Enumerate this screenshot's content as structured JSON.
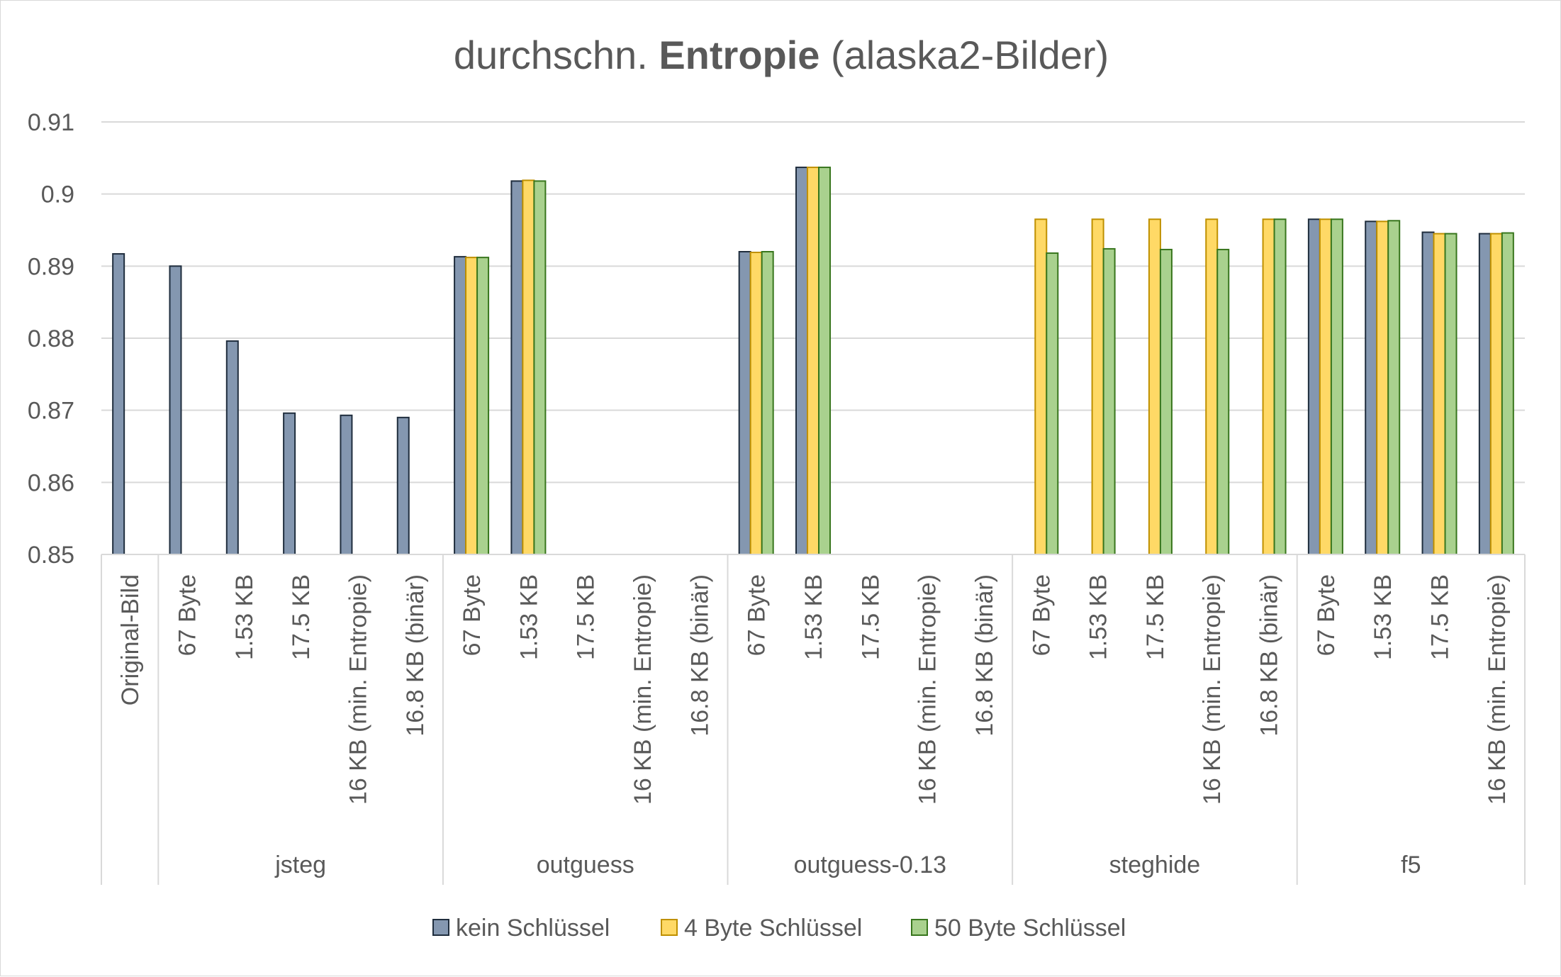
{
  "chart_data": {
    "type": "bar",
    "title": {
      "prefix": "durchschn. ",
      "bold": "Entropie",
      "suffix": " (alaska2-Bilder)"
    },
    "ylim": [
      0.85,
      0.91
    ],
    "yticks": [
      "0.85",
      "0.86",
      "0.87",
      "0.88",
      "0.89",
      "0.9",
      "0.91"
    ],
    "grid": true,
    "legend_position": "bottom",
    "groups": [
      {
        "label": "",
        "categories": [
          "Original-Bild"
        ]
      },
      {
        "label": "jsteg",
        "categories": [
          "67 Byte",
          "1.53 KB",
          "17.5 KB",
          "16 KB (min. Entropie)",
          "16.8 KB (binär)"
        ]
      },
      {
        "label": "outguess",
        "categories": [
          "67 Byte",
          "1.53 KB",
          "17.5 KB",
          "16 KB (min. Entropie)",
          "16.8 KB (binär)"
        ]
      },
      {
        "label": "outguess-0.13",
        "categories": [
          "67 Byte",
          "1.53 KB",
          "17.5 KB",
          "16 KB (min. Entropie)",
          "16.8 KB (binär)"
        ]
      },
      {
        "label": "steghide",
        "categories": [
          "67 Byte",
          "1.53 KB",
          "17.5 KB",
          "16 KB (min. Entropie)",
          "16.8 KB (binär)"
        ]
      },
      {
        "label": "f5",
        "categories": [
          "67 Byte",
          "1.53 KB",
          "17.5 KB",
          "16 KB (min. Entropie)"
        ]
      }
    ],
    "series": [
      {
        "name": "kein Schlüssel",
        "color": "#8497b0",
        "stroke": "#1f2d3d",
        "values": [
          0.8917,
          0.89,
          0.8796,
          0.8696,
          0.8693,
          0.869,
          0.8913,
          0.9018,
          null,
          null,
          null,
          0.892,
          0.9037,
          null,
          null,
          null,
          null,
          null,
          null,
          null,
          null,
          0.8965,
          0.8962,
          0.8947,
          0.8945
        ]
      },
      {
        "name": "4 Byte Schlüssel",
        "color": "#ffd966",
        "stroke": "#bf9000",
        "values": [
          null,
          null,
          null,
          null,
          null,
          null,
          0.8912,
          0.9019,
          null,
          null,
          null,
          0.8919,
          0.9037,
          null,
          null,
          null,
          0.8965,
          0.8965,
          0.8965,
          0.8965,
          0.8965,
          0.8965,
          0.8962,
          0.8945,
          0.8945
        ]
      },
      {
        "name": "50 Byte Schlüssel",
        "color": "#a9d18e",
        "stroke": "#38761d",
        "values": [
          null,
          null,
          null,
          null,
          null,
          null,
          0.8912,
          0.9018,
          null,
          null,
          null,
          0.892,
          0.9037,
          null,
          null,
          null,
          0.8918,
          0.8924,
          0.8923,
          0.8923,
          0.8965,
          0.8965,
          0.8963,
          0.8945,
          0.8946
        ]
      }
    ]
  }
}
